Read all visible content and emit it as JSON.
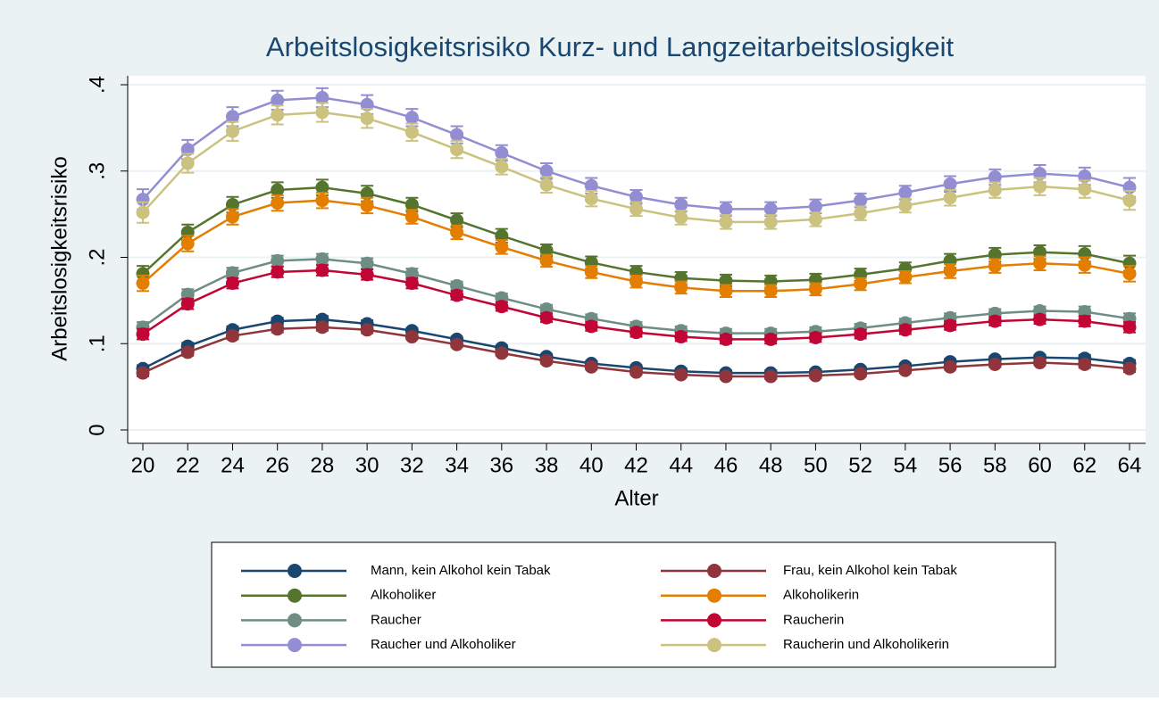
{
  "chart_data": {
    "type": "line",
    "title": "Arbeitslosigkeitsrisiko Kurz- und Langzeitarbeitslosigkeit",
    "x_label": "Alter",
    "y_label": "Arbeitslosigkeitsrisiko",
    "x": [
      20,
      22,
      24,
      26,
      28,
      30,
      32,
      34,
      36,
      38,
      40,
      42,
      44,
      46,
      48,
      50,
      52,
      54,
      56,
      58,
      60,
      62,
      64
    ],
    "xlim": [
      20,
      64
    ],
    "xticks": [
      20,
      22,
      24,
      26,
      28,
      30,
      32,
      34,
      36,
      38,
      40,
      42,
      44,
      46,
      48,
      50,
      52,
      54,
      56,
      58,
      60,
      62,
      64
    ],
    "ylim": [
      0,
      0.4
    ],
    "yticks": [
      0,
      {
        "value": 0.1,
        "label": ".1"
      },
      {
        "value": 0.2,
        "label": ".2"
      },
      {
        "value": 0.3,
        "label": ".3"
      },
      {
        "value": 0.4,
        "label": ".4"
      }
    ],
    "grid": true,
    "series": [
      {
        "name": "Mann, kein Alkohol kein Tabak",
        "color": "#1a476f",
        "values": [
          0.071,
          0.097,
          0.116,
          0.126,
          0.128,
          0.123,
          0.115,
          0.105,
          0.095,
          0.085,
          0.077,
          0.072,
          0.068,
          0.066,
          0.066,
          0.067,
          0.07,
          0.074,
          0.079,
          0.082,
          0.084,
          0.083,
          0.077
        ],
        "errors": [
          0.004,
          0.004,
          0.004,
          0.004,
          0.004,
          0.004,
          0.003,
          0.003,
          0.003,
          0.003,
          0.003,
          0.003,
          0.003,
          0.003,
          0.003,
          0.003,
          0.003,
          0.003,
          0.003,
          0.003,
          0.003,
          0.004,
          0.004
        ]
      },
      {
        "name": "Frau, kein Alkohol kein Tabak",
        "color": "#90353b",
        "values": [
          0.066,
          0.09,
          0.109,
          0.117,
          0.119,
          0.116,
          0.108,
          0.099,
          0.089,
          0.08,
          0.073,
          0.067,
          0.064,
          0.062,
          0.062,
          0.063,
          0.065,
          0.069,
          0.073,
          0.076,
          0.078,
          0.076,
          0.071
        ],
        "errors": [
          0.004,
          0.004,
          0.004,
          0.004,
          0.004,
          0.004,
          0.003,
          0.003,
          0.003,
          0.003,
          0.003,
          0.003,
          0.003,
          0.003,
          0.003,
          0.003,
          0.003,
          0.003,
          0.003,
          0.003,
          0.003,
          0.004,
          0.004
        ]
      },
      {
        "name": "Alkoholiker",
        "color": "#55752f",
        "values": [
          0.181,
          0.229,
          0.261,
          0.278,
          0.281,
          0.274,
          0.261,
          0.243,
          0.225,
          0.208,
          0.194,
          0.183,
          0.176,
          0.173,
          0.172,
          0.174,
          0.18,
          0.187,
          0.196,
          0.203,
          0.206,
          0.204,
          0.193
        ],
        "errors": [
          0.009,
          0.009,
          0.009,
          0.009,
          0.009,
          0.009,
          0.008,
          0.008,
          0.008,
          0.007,
          0.007,
          0.007,
          0.007,
          0.007,
          0.007,
          0.007,
          0.007,
          0.007,
          0.008,
          0.008,
          0.008,
          0.009,
          0.009
        ]
      },
      {
        "name": "Alkoholikerin",
        "color": "#e37e00",
        "values": [
          0.17,
          0.216,
          0.247,
          0.263,
          0.266,
          0.26,
          0.247,
          0.229,
          0.212,
          0.196,
          0.183,
          0.172,
          0.165,
          0.161,
          0.161,
          0.163,
          0.169,
          0.177,
          0.184,
          0.19,
          0.193,
          0.191,
          0.181
        ],
        "errors": [
          0.009,
          0.009,
          0.009,
          0.009,
          0.009,
          0.009,
          0.008,
          0.008,
          0.008,
          0.007,
          0.007,
          0.007,
          0.007,
          0.007,
          0.007,
          0.007,
          0.007,
          0.007,
          0.008,
          0.008,
          0.008,
          0.009,
          0.009
        ]
      },
      {
        "name": "Raucher",
        "color": "#6e8e84",
        "values": [
          0.119,
          0.157,
          0.182,
          0.196,
          0.198,
          0.193,
          0.181,
          0.167,
          0.153,
          0.14,
          0.129,
          0.12,
          0.115,
          0.112,
          0.112,
          0.114,
          0.118,
          0.124,
          0.13,
          0.135,
          0.138,
          0.137,
          0.129
        ],
        "errors": [
          0.006,
          0.006,
          0.006,
          0.006,
          0.006,
          0.006,
          0.006,
          0.005,
          0.005,
          0.005,
          0.005,
          0.005,
          0.005,
          0.005,
          0.005,
          0.005,
          0.005,
          0.005,
          0.005,
          0.005,
          0.005,
          0.006,
          0.006
        ]
      },
      {
        "name": "Raucherin",
        "color": "#c10534",
        "values": [
          0.111,
          0.146,
          0.17,
          0.183,
          0.185,
          0.18,
          0.17,
          0.156,
          0.143,
          0.13,
          0.12,
          0.113,
          0.108,
          0.105,
          0.105,
          0.107,
          0.111,
          0.116,
          0.121,
          0.126,
          0.128,
          0.126,
          0.119
        ],
        "errors": [
          0.006,
          0.006,
          0.006,
          0.006,
          0.006,
          0.006,
          0.006,
          0.005,
          0.005,
          0.005,
          0.005,
          0.005,
          0.005,
          0.005,
          0.005,
          0.005,
          0.005,
          0.005,
          0.005,
          0.005,
          0.005,
          0.006,
          0.006
        ]
      },
      {
        "name": "Raucher und Alkoholiker",
        "color": "#938dd2",
        "values": [
          0.267,
          0.325,
          0.363,
          0.382,
          0.385,
          0.377,
          0.362,
          0.342,
          0.321,
          0.3,
          0.283,
          0.27,
          0.261,
          0.256,
          0.256,
          0.259,
          0.266,
          0.275,
          0.285,
          0.293,
          0.297,
          0.294,
          0.281
        ],
        "errors": [
          0.012,
          0.011,
          0.011,
          0.011,
          0.011,
          0.011,
          0.01,
          0.01,
          0.009,
          0.009,
          0.009,
          0.008,
          0.008,
          0.008,
          0.008,
          0.008,
          0.008,
          0.008,
          0.009,
          0.009,
          0.01,
          0.01,
          0.011
        ]
      },
      {
        "name": "Raucherin und Alkoholikerin",
        "color": "#cac27e",
        "values": [
          0.252,
          0.309,
          0.346,
          0.365,
          0.368,
          0.361,
          0.345,
          0.325,
          0.305,
          0.284,
          0.268,
          0.256,
          0.246,
          0.241,
          0.241,
          0.244,
          0.251,
          0.26,
          0.269,
          0.278,
          0.282,
          0.279,
          0.266
        ],
        "errors": [
          0.012,
          0.011,
          0.011,
          0.011,
          0.011,
          0.011,
          0.01,
          0.01,
          0.009,
          0.009,
          0.009,
          0.008,
          0.008,
          0.008,
          0.008,
          0.008,
          0.008,
          0.008,
          0.009,
          0.009,
          0.01,
          0.01,
          0.011
        ]
      }
    ]
  }
}
